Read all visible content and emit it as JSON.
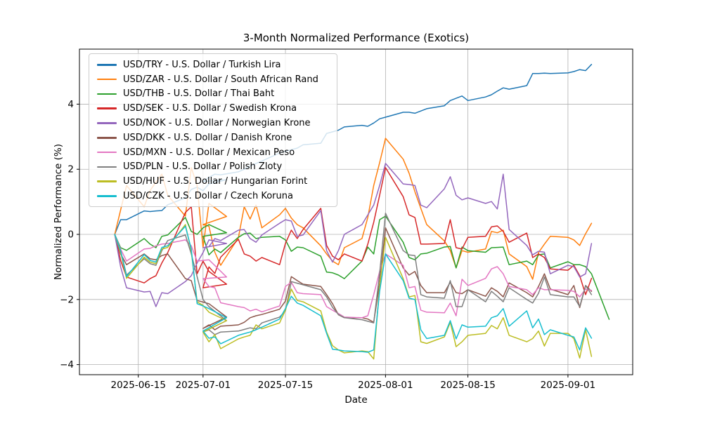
{
  "title": "3-Month Normalized Performance (Exotics)",
  "chart_data": {
    "type": "line",
    "title": "3-Month Normalized Performance (Exotics)",
    "xlabel": "Date",
    "ylabel": "Normalized Performance (%)",
    "grid": true,
    "legend_position": "upper-left",
    "background": "#ffffff",
    "grid_color": "#b0b0b0",
    "spine_color": "#000000",
    "ylim": [
      -4.31,
      5.69
    ],
    "xlim_dates": [
      "2025-06-05",
      "2025-09-12"
    ],
    "y_ticks": [
      -4,
      -2,
      0,
      2,
      4
    ],
    "y_tick_labels": [
      "−4",
      "−2",
      "0",
      "2",
      "4"
    ],
    "x_ticks": [
      "2025-06-15",
      "2025-07-01",
      "2025-07-15",
      "2025-08-01",
      "2025-08-15",
      "2025-09-01"
    ],
    "x_dates": [
      "2025-06-11",
      "2025-06-12",
      "2025-06-13",
      "2025-06-16",
      "2025-06-17",
      "2025-06-18",
      "2025-06-19",
      "2025-06-20",
      "2025-06-23",
      "2025-06-24",
      "2025-06-25",
      "2025-06-26",
      "2025-06-27",
      "2025-06-30",
      "2025-07-01",
      "2025-07-02",
      "2025-07-03",
      "2025-07-04",
      "2025-07-07",
      "2025-07-08",
      "2025-07-09",
      "2025-07-10",
      "2025-07-11",
      "2025-07-14",
      "2025-07-15",
      "2025-07-16",
      "2025-07-17",
      "2025-07-18",
      "2025-07-21",
      "2025-07-22",
      "2025-07-23",
      "2025-07-24",
      "2025-07-25",
      "2025-07-28",
      "2025-07-29",
      "2025-07-30",
      "2025-07-31",
      "2025-08-01",
      "2025-08-04",
      "2025-08-05",
      "2025-08-06",
      "2025-08-07",
      "2025-08-08",
      "2025-08-11",
      "2025-08-12",
      "2025-08-13",
      "2025-08-14",
      "2025-08-15",
      "2025-08-18",
      "2025-08-19",
      "2025-08-20",
      "2025-08-21",
      "2025-08-22",
      "2025-08-25",
      "2025-08-26",
      "2025-08-27",
      "2025-08-28",
      "2025-08-29",
      "2025-09-01",
      "2025-09-02",
      "2025-09-03",
      "2025-09-04",
      "2025-09-05",
      "2025-09-08"
    ],
    "series": [
      {
        "name": "USD/TRY",
        "label": "USD/TRY - U.S. Dollar / Turkish Lira",
        "color": "#1f77b4",
        "values": [
          0,
          0.45,
          0.45,
          0.72,
          0.7,
          0.72,
          0.73,
          0.91,
          1.12,
          1.38,
          1.45,
          1.34,
          1.55,
          1.68,
          1.62,
          1.75,
          1.85,
          1.83,
          1.92,
          2.0,
          2.1,
          2.18,
          2.25,
          2.5,
          2.55,
          2.6,
          2.65,
          2.75,
          2.8,
          3.1,
          3.15,
          3.2,
          3.3,
          3.35,
          3.32,
          3.42,
          3.55,
          3.6,
          3.75,
          3.75,
          3.72,
          3.79,
          3.86,
          3.95,
          4.11,
          4.18,
          4.25,
          4.11,
          4.22,
          4.29,
          4.4,
          4.5,
          4.46,
          4.57,
          4.94,
          4.94,
          4.95,
          4.94,
          4.96,
          5.0,
          5.06,
          5.03,
          5.22,
          null
        ]
      },
      {
        "name": "USD/ZAR",
        "label": "USD/ZAR - U.S. Dollar / South African Rand",
        "color": "#ff7f0e",
        "values": [
          0,
          0.75,
          1.5,
          0.85,
          1.35,
          1.6,
          1.85,
          1.2,
          0.56,
          2.05,
          1.5,
          -0.4,
          0.95,
          0.55,
          0.3,
          0.25,
          -0.55,
          -0.95,
          -0.1,
          0.85,
          0.47,
          0.9,
          0.2,
          0.6,
          0.8,
          0.5,
          0.3,
          0.2,
          -0.35,
          -0.6,
          -0.82,
          -0.93,
          -0.41,
          -0.13,
          0.52,
          1.5,
          2.2,
          2.95,
          2.31,
          1.88,
          1.31,
          0.8,
          0.3,
          -0.2,
          -0.5,
          -1.03,
          -0.5,
          -0.55,
          -0.45,
          0.09,
          0.05,
          0.13,
          -0.6,
          -0.99,
          -1.38,
          -0.56,
          -0.3,
          -0.06,
          -0.09,
          -0.17,
          -0.34,
          0.02,
          0.34,
          null
        ]
      },
      {
        "name": "USD/THB",
        "label": "USD/THB - U.S. Dollar / Thai Baht",
        "color": "#2ca02c",
        "values": [
          0,
          -0.41,
          -0.49,
          -0.13,
          -0.3,
          -0.41,
          -0.06,
          -0.02,
          0.52,
          0.09,
          0.0,
          0.2,
          0.3,
          0.05,
          -0.06,
          -0.63,
          -0.45,
          -0.56,
          -0.09,
          0.02,
          0.04,
          -0.13,
          -0.09,
          -0.06,
          -0.17,
          -0.52,
          -0.39,
          -0.41,
          -0.67,
          -1.16,
          -1.18,
          -1.25,
          -1.36,
          -0.82,
          -0.39,
          -0.6,
          0.45,
          0.56,
          -0.24,
          -0.71,
          -0.78,
          -0.6,
          -0.58,
          -0.39,
          -0.37,
          -1.03,
          -0.39,
          -0.5,
          -0.55,
          -0.41,
          -0.4,
          -0.39,
          -0.93,
          -0.82,
          -0.93,
          -0.63,
          -0.6,
          -1.03,
          -0.84,
          -0.93,
          -0.93,
          -0.99,
          -1.21,
          -2.61
        ]
      },
      {
        "name": "USD/SEK",
        "label": "USD/SEK - U.S. Dollar / Swedish Krona",
        "color": "#d62728",
        "values": [
          0,
          -0.8,
          -1.31,
          -1.49,
          -1.36,
          -1.27,
          -0.88,
          -0.56,
          0.67,
          0.85,
          -1.21,
          -0.82,
          -1.14,
          -1.53,
          -1.64,
          -1.0,
          -1.2,
          -0.7,
          -0.15,
          -0.6,
          -0.67,
          -0.82,
          -0.71,
          -0.93,
          -0.28,
          0.13,
          -0.13,
          0.15,
          0.8,
          -0.34,
          -0.67,
          -0.78,
          -0.6,
          -0.82,
          -0.3,
          0.37,
          1.2,
          2.05,
          1.16,
          0.6,
          0.52,
          -0.3,
          -0.3,
          -0.28,
          0.45,
          -0.41,
          -0.45,
          -0.09,
          -0.06,
          0.23,
          0.26,
          0.09,
          -0.24,
          0.04,
          -0.71,
          -0.6,
          -0.71,
          -1.06,
          -1.1,
          -0.95,
          -1.27,
          -1.85,
          -1.35,
          null
        ]
      },
      {
        "name": "USD/NOK",
        "label": "USD/NOK - U.S. Dollar / Norwegian Krone",
        "color": "#9467bd",
        "values": [
          0,
          -1.0,
          -1.64,
          -1.77,
          -1.75,
          -2.22,
          -1.79,
          -1.82,
          -1.45,
          -1.27,
          -0.88,
          -0.56,
          -0.17,
          -0.28,
          -0.41,
          -0.38,
          -0.13,
          -0.19,
          0.13,
          0.15,
          -0.13,
          -0.24,
          -0.02,
          0.34,
          0.45,
          0.41,
          -0.06,
          -0.02,
          0.73,
          -0.5,
          -0.85,
          -0.5,
          0.0,
          0.3,
          0.6,
          0.9,
          1.5,
          2.18,
          1.55,
          1.53,
          1.5,
          0.9,
          0.82,
          1.4,
          1.77,
          1.2,
          1.06,
          1.12,
          0.95,
          1.01,
          0.78,
          1.85,
          0.15,
          -0.34,
          -0.63,
          -0.52,
          -0.55,
          -1.21,
          -0.95,
          -0.99,
          -1.31,
          -1.21,
          -0.28,
          null
        ]
      },
      {
        "name": "USD/DKK",
        "label": "USD/DKK - U.S. Dollar / Danish Krone",
        "color": "#8c564b",
        "values": [
          0,
          -0.6,
          -0.93,
          -0.6,
          -0.75,
          -0.78,
          -0.65,
          -0.6,
          -1.36,
          -1.42,
          -2.03,
          -2.08,
          -2.13,
          -2.54,
          -2.89,
          -2.78,
          -2.93,
          -2.82,
          -2.78,
          -2.7,
          -2.56,
          -2.5,
          -2.46,
          -2.3,
          -2.05,
          -1.3,
          -1.42,
          -1.53,
          -1.6,
          -1.85,
          -2.13,
          -2.47,
          -2.56,
          -2.56,
          -2.6,
          -2.7,
          -1.5,
          0.2,
          -1.03,
          -1.25,
          -1.14,
          -1.57,
          -1.79,
          -1.79,
          -1.47,
          -1.79,
          -1.82,
          -1.7,
          -1.9,
          -1.64,
          -1.75,
          -1.92,
          -1.49,
          -1.79,
          -1.92,
          -1.6,
          -1.21,
          -1.68,
          -1.85,
          -1.57,
          -2.25,
          -1.57,
          -1.75,
          null
        ]
      },
      {
        "name": "USD/MXN",
        "label": "USD/MXN - U.S. Dollar / Mexican Peso",
        "color": "#e377c2",
        "values": [
          0,
          -0.45,
          -0.82,
          -0.45,
          -0.43,
          -0.35,
          -0.3,
          -0.28,
          -0.17,
          -0.35,
          -0.82,
          -0.8,
          -0.78,
          -1.31,
          -1.36,
          -1.6,
          -1.64,
          -2.1,
          -2.22,
          -2.25,
          -2.35,
          -2.3,
          -2.38,
          -2.2,
          -1.6,
          -1.47,
          -1.79,
          -1.82,
          -1.85,
          -2.22,
          -2.33,
          -2.43,
          -2.54,
          -2.56,
          -2.5,
          -1.85,
          -1.14,
          -0.6,
          -0.95,
          -1.64,
          -1.6,
          -2.33,
          -2.39,
          -2.41,
          -2.11,
          -2.5,
          -1.38,
          -1.57,
          -1.35,
          -1.06,
          -0.99,
          -1.21,
          -1.6,
          -1.7,
          -1.85,
          -1.64,
          -1.7,
          -1.7,
          -1.72,
          -1.75,
          -1.92,
          -1.68,
          -1.72,
          null
        ]
      },
      {
        "name": "USD/PLN",
        "label": "USD/PLN - U.S. Dollar / Polish Zloty",
        "color": "#7f7f7f",
        "values": [
          0,
          -0.5,
          -1.25,
          -0.75,
          -0.9,
          -0.95,
          -0.5,
          -0.19,
          -0.02,
          -0.6,
          -1.3,
          -2.0,
          -2.22,
          -2.65,
          -3.0,
          -2.93,
          -3.08,
          -3.0,
          -2.97,
          -2.92,
          -2.87,
          -2.9,
          -2.72,
          -2.54,
          -2.35,
          -1.45,
          -1.5,
          -1.55,
          -1.7,
          -1.92,
          -2.24,
          -2.46,
          -2.56,
          -2.62,
          -2.67,
          -2.72,
          -1.2,
          0.65,
          -0.5,
          -0.63,
          -0.65,
          -1.85,
          -1.92,
          -1.96,
          -1.42,
          -2.22,
          -2.22,
          -1.7,
          -2.07,
          -1.75,
          -1.9,
          -2.07,
          -1.64,
          -2.0,
          -2.11,
          -1.81,
          -1.31,
          -1.85,
          -1.92,
          -1.92,
          -2.22,
          -1.57,
          -1.85,
          null
        ]
      },
      {
        "name": "USD/HUF",
        "label": "USD/HUF - U.S. Dollar / Hungarian Forint",
        "color": "#bcbd22",
        "values": [
          0,
          -0.55,
          -1.35,
          -0.7,
          -0.85,
          -0.9,
          -0.45,
          -0.4,
          0.3,
          -0.52,
          -2.07,
          -2.18,
          -2.39,
          -2.65,
          -3.0,
          -3.3,
          -3.08,
          -3.51,
          -3.21,
          -3.15,
          -3.1,
          -2.78,
          -2.9,
          -2.72,
          -2.33,
          -1.68,
          -2.03,
          -2.07,
          -2.35,
          -3.0,
          -3.42,
          -3.55,
          -3.64,
          -3.58,
          -3.6,
          -3.83,
          -1.6,
          -0.09,
          -1.36,
          -1.92,
          -1.88,
          -3.3,
          -3.35,
          -3.15,
          -2.7,
          -3.45,
          -3.3,
          -3.1,
          -3.04,
          -2.8,
          -2.9,
          -2.56,
          -3.1,
          -3.3,
          -3.2,
          -2.97,
          -3.43,
          -3.04,
          -3.04,
          -3.2,
          -3.8,
          -2.93,
          -3.75,
          null
        ]
      },
      {
        "name": "USD/CZK",
        "label": "USD/CZK - U.S. Dollar / Czech Koruna",
        "color": "#17becf",
        "values": [
          0,
          -0.5,
          -1.3,
          -0.62,
          -0.8,
          -0.85,
          -0.4,
          -0.35,
          0.25,
          -0.45,
          -2.13,
          -2.2,
          -2.28,
          -2.56,
          -2.97,
          -3.19,
          -3.15,
          -3.36,
          -3.1,
          -3.05,
          -3.0,
          -2.93,
          -2.85,
          -2.6,
          -2.28,
          -1.9,
          -2.11,
          -2.18,
          -2.5,
          -3.04,
          -3.53,
          -3.55,
          -3.58,
          -3.6,
          -3.62,
          -3.55,
          -1.75,
          -0.6,
          -1.42,
          -1.96,
          -2.0,
          -2.93,
          -3.2,
          -3.1,
          -2.65,
          -3.21,
          -2.78,
          -2.85,
          -2.82,
          -2.56,
          -2.5,
          -2.28,
          -2.82,
          -2.35,
          -2.87,
          -2.6,
          -3.08,
          -2.93,
          -3.1,
          -3.15,
          -3.55,
          -2.87,
          -3.19,
          null
        ]
      }
    ]
  }
}
